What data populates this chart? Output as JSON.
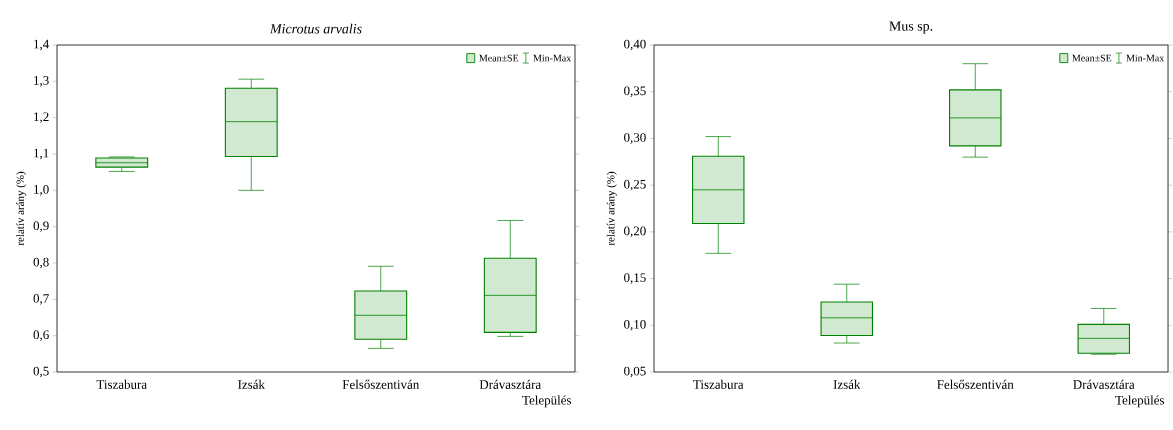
{
  "chart_data": [
    {
      "type": "box",
      "title": "*Microtus arvalis*",
      "xlabel": "Település",
      "ylabel": "relatív arány (%)",
      "categories": [
        "Tiszabura",
        "Izsák",
        "Felsőszentiván",
        "Drávasztára"
      ],
      "series": [
        {
          "name": "Mean±SE",
          "color": "#008000",
          "boxes": [
            {
              "low": 1.052,
              "q1": 1.064,
              "median": 1.076,
              "q3": 1.089,
              "high": 1.092
            },
            {
              "low": 1.0,
              "q1": 1.093,
              "median": 1.189,
              "q3": 1.281,
              "high": 1.306
            },
            {
              "low": 0.565,
              "q1": 0.59,
              "median": 0.656,
              "q3": 0.723,
              "high": 0.791
            },
            {
              "low": 0.598,
              "q1": 0.609,
              "median": 0.711,
              "q3": 0.813,
              "high": 0.917
            }
          ]
        }
      ],
      "annotations": [
        "Min-Max"
      ],
      "ylim": [
        0.5,
        1.4
      ],
      "yticks": [
        {
          "value": 0.5,
          "label": "0,5"
        },
        {
          "value": 0.6,
          "label": "0,6"
        },
        {
          "value": 0.7,
          "label": "0,7"
        },
        {
          "value": 0.8,
          "label": "0,8"
        },
        {
          "value": 0.9,
          "label": "0,9"
        },
        {
          "value": 1.0,
          "label": "1,0"
        },
        {
          "value": 1.1,
          "label": "1,1"
        },
        {
          "value": 1.2,
          "label": "1,2"
        },
        {
          "value": 1.3,
          "label": "1,3"
        },
        {
          "value": 1.4,
          "label": "1,4"
        }
      ],
      "legend": "top right"
    },
    {
      "type": "box",
      "title": "Mus sp.",
      "xlabel": "Település",
      "ylabel": "relatív arány (%)",
      "categories": [
        "Tiszabura",
        "Izsák",
        "Felsőszentiván",
        "Drávasztára"
      ],
      "series": [
        {
          "name": "Mean±SE",
          "color": "#008000",
          "boxes": [
            {
              "low": 0.177,
              "q1": 0.209,
              "median": 0.245,
              "q3": 0.281,
              "high": 0.302
            },
            {
              "low": 0.081,
              "q1": 0.089,
              "median": 0.108,
              "q3": 0.125,
              "high": 0.144
            },
            {
              "low": 0.28,
              "q1": 0.292,
              "median": 0.322,
              "q3": 0.352,
              "high": 0.38
            },
            {
              "low": 0.069,
              "q1": 0.07,
              "median": 0.086,
              "q3": 0.101,
              "high": 0.118
            }
          ]
        }
      ],
      "annotations": [
        "Min-Max"
      ],
      "ylim": [
        0.05,
        0.4
      ],
      "yticks": [
        {
          "value": 0.05,
          "label": "0,05"
        },
        {
          "value": 0.1,
          "label": "0,10"
        },
        {
          "value": 0.15,
          "label": "0,15"
        },
        {
          "value": 0.2,
          "label": "0,20"
        },
        {
          "value": 0.25,
          "label": "0,25"
        },
        {
          "value": 0.3,
          "label": "0,30"
        },
        {
          "value": 0.35,
          "label": "0,35"
        },
        {
          "value": 0.4,
          "label": "0,40"
        }
      ],
      "legend": "top right"
    }
  ]
}
